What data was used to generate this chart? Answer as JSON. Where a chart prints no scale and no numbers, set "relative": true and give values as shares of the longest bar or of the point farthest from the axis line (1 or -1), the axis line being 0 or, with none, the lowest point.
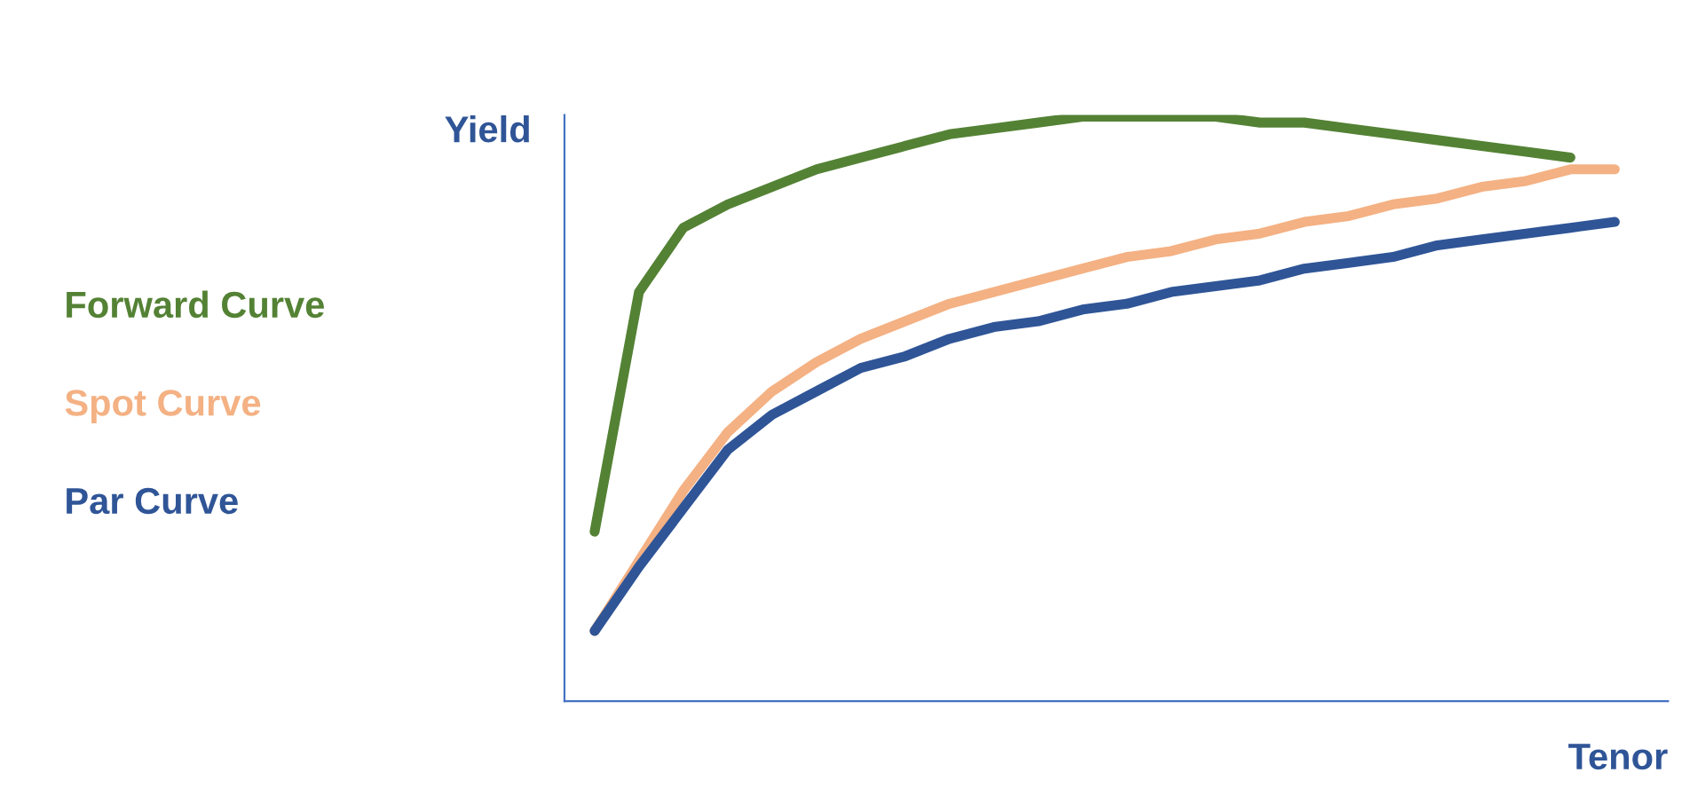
{
  "chart_data": {
    "type": "line",
    "relative": true,
    "xlabel": "Tenor",
    "ylabel": "Yield",
    "legend": "left",
    "categories": [
      null,
      null,
      null,
      null,
      null,
      null,
      null,
      null,
      null,
      null,
      null,
      null,
      null,
      null,
      null,
      null,
      null,
      null,
      null,
      null,
      null,
      null,
      null,
      null
    ],
    "series": [
      {
        "name": "Forward Curve",
        "color": "#548235",
        "values": [
          0.29,
          0.7,
          0.81,
          0.85,
          0.88,
          0.91,
          0.93,
          0.95,
          0.97,
          0.98,
          0.99,
          1.0,
          1.0,
          1.0,
          1.0,
          0.99,
          0.99,
          0.98,
          0.97,
          0.96,
          0.95,
          0.94,
          0.93,
          null
        ]
      },
      {
        "name": "Spot Curve",
        "color": "#f4b183",
        "values": [
          0.12,
          0.24,
          0.36,
          0.46,
          0.53,
          0.58,
          0.62,
          0.65,
          0.68,
          0.7,
          0.72,
          0.74,
          0.76,
          0.77,
          0.79,
          0.8,
          0.82,
          0.83,
          0.85,
          0.86,
          0.88,
          0.89,
          0.91,
          0.91
        ]
      },
      {
        "name": "Par Curve",
        "color": "#2f5597",
        "values": [
          0.12,
          0.23,
          0.33,
          0.43,
          0.49,
          0.53,
          0.57,
          0.59,
          0.62,
          0.64,
          0.65,
          0.67,
          0.68,
          0.7,
          0.71,
          0.72,
          0.74,
          0.75,
          0.76,
          0.78,
          0.79,
          0.8,
          0.81,
          0.82
        ]
      }
    ]
  }
}
